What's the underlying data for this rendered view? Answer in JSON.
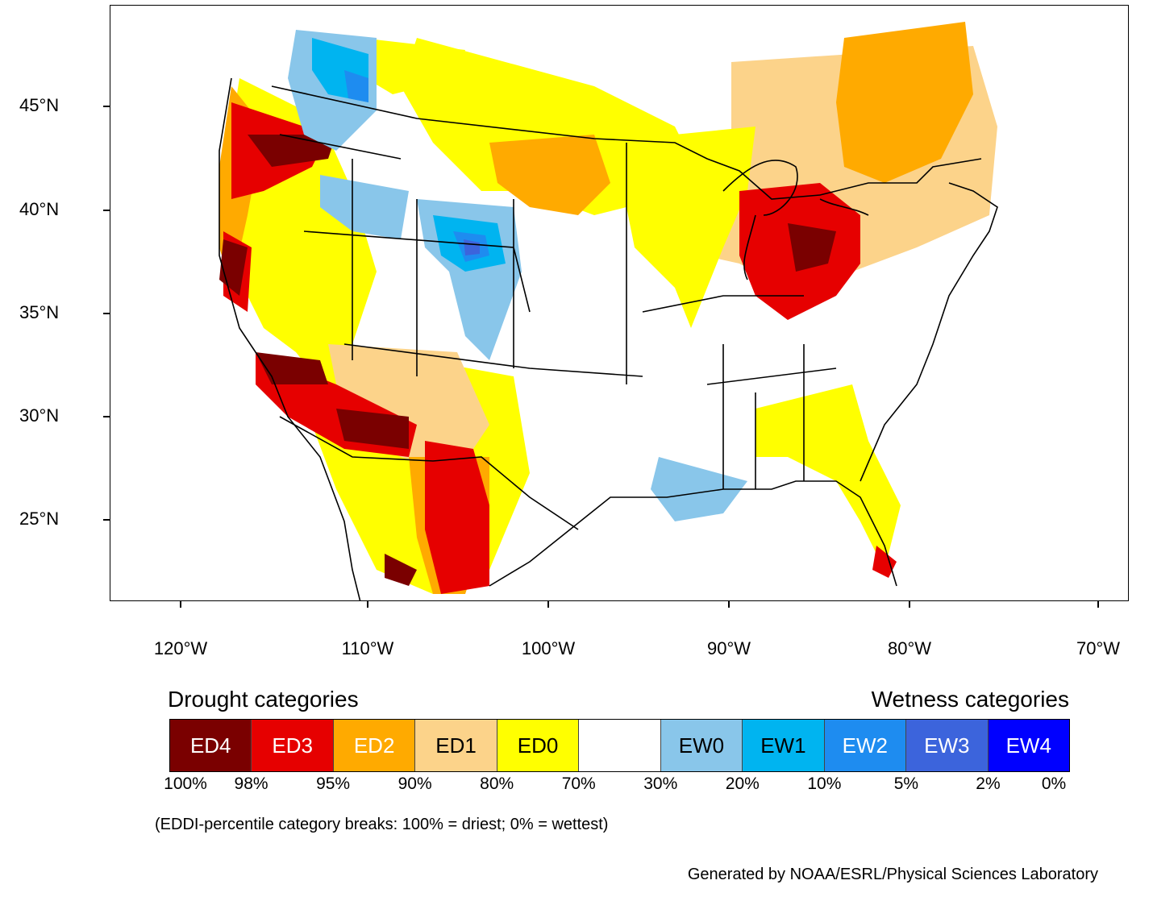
{
  "map": {
    "lat_labels": [
      "45°N",
      "40°N",
      "35°N",
      "30°N",
      "25°N"
    ],
    "lon_labels": [
      "120°W",
      "110°W",
      "100°W",
      "90°W",
      "80°W",
      "70°W"
    ]
  },
  "legend": {
    "drought_title": "Drought categories",
    "wetness_title": "Wetness categories",
    "categories": [
      {
        "label": "ED4",
        "color": "#7a0000",
        "text_color": "#ffffff"
      },
      {
        "label": "ED3",
        "color": "#e60000",
        "text_color": "#ffffff"
      },
      {
        "label": "ED2",
        "color": "#ffaa00",
        "text_color": "#ffffff"
      },
      {
        "label": "ED1",
        "color": "#fcd38a",
        "text_color": "#000000"
      },
      {
        "label": "ED0",
        "color": "#ffff00",
        "text_color": "#000000"
      },
      {
        "label": "",
        "color": "#ffffff",
        "text_color": "#000000"
      },
      {
        "label": "EW0",
        "color": "#89c6ea",
        "text_color": "#000000"
      },
      {
        "label": "EW1",
        "color": "#00b4f0",
        "text_color": "#000000"
      },
      {
        "label": "EW2",
        "color": "#1e8cf0",
        "text_color": "#ffffff"
      },
      {
        "label": "EW3",
        "color": "#3c64dc",
        "text_color": "#ffffff"
      },
      {
        "label": "EW4",
        "color": "#0000ff",
        "text_color": "#ffffff"
      }
    ],
    "percentiles": [
      "100%",
      "98%",
      "95%",
      "90%",
      "80%",
      "70%",
      "30%",
      "20%",
      "10%",
      "5%",
      "2%",
      "0%"
    ]
  },
  "note": "(EDDI-percentile category breaks: 100% = driest; 0% = wettest)",
  "credit": "Generated by NOAA/ESRL/Physical Sciences Laboratory"
}
